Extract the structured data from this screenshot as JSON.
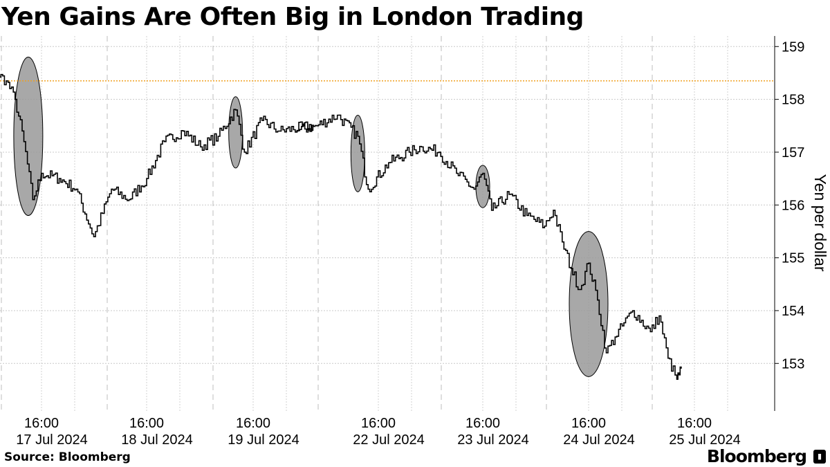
{
  "header": {
    "title": "Yen Gains Are Often Big in London Trading"
  },
  "footer": {
    "source": "Source: Bloomberg",
    "brand": "Bloomberg"
  },
  "chart_data": {
    "type": "line",
    "title": "Yen Gains Are Often Big in London Trading",
    "ylabel": "Yen per dollar",
    "xlabel": "",
    "ylim": [
      152.1,
      159.2
    ],
    "y_ticks": [
      153,
      154,
      155,
      156,
      157,
      158,
      159
    ],
    "x_tick_labels": [
      {
        "time": "16:00",
        "date": "17 Jul 2024"
      },
      {
        "time": "16:00",
        "date": "18 Jul 2024"
      },
      {
        "time": "16:00",
        "date": "19 Jul 2024"
      },
      {
        "time": "16:00",
        "date": "22 Jul 2024"
      },
      {
        "time": "16:00",
        "date": "23 Jul 2024"
      },
      {
        "time": "16:00",
        "date": "24 Jul 2024"
      },
      {
        "time": "16:00",
        "date": "25 Jul 2024"
      }
    ],
    "reference_line": {
      "value": 158.35,
      "color": "#f0a020",
      "style": "dotted"
    },
    "grid": true,
    "series": [
      {
        "color": "#000000",
        "segments": [
          [
            {
              "x": "17 Jul 2024 00:00",
              "y": 158.35
            },
            {
              "x": "17 Jul 2024 04:00",
              "y": 158.6
            },
            {
              "x": "17 Jul 2024 08:00",
              "y": 158.35
            },
            {
              "x": "17 Jul 2024 10:00",
              "y": 158.0
            },
            {
              "x": "17 Jul 2024 12:00",
              "y": 157.2
            },
            {
              "x": "17 Jul 2024 14:00",
              "y": 156.1
            },
            {
              "x": "17 Jul 2024 16:00",
              "y": 156.6
            },
            {
              "x": "17 Jul 2024 20:00",
              "y": 156.5
            },
            {
              "x": "18 Jul 2024 00:00",
              "y": 156.3
            },
            {
              "x": "18 Jul 2024 04:00",
              "y": 155.4
            },
            {
              "x": "18 Jul 2024 08:00",
              "y": 156.3
            },
            {
              "x": "18 Jul 2024 12:00",
              "y": 156.1
            },
            {
              "x": "18 Jul 2024 16:00",
              "y": 156.5
            },
            {
              "x": "18 Jul 2024 20:00",
              "y": 157.2
            },
            {
              "x": "19 Jul 2024 00:00",
              "y": 157.4
            },
            {
              "x": "19 Jul 2024 04:00",
              "y": 157.1
            },
            {
              "x": "19 Jul 2024 08:00",
              "y": 157.3
            },
            {
              "x": "19 Jul 2024 12:00",
              "y": 157.8
            },
            {
              "x": "19 Jul 2024 14:00",
              "y": 157.0
            },
            {
              "x": "19 Jul 2024 18:00",
              "y": 157.6
            },
            {
              "x": "19 Jul 2024 22:00",
              "y": 157.4
            },
            {
              "x": "20 Jul 2024 00:00",
              "y": 157.5
            }
          ],
          [
            {
              "x": "22 Jul 2024 00:00",
              "y": 157.4
            },
            {
              "x": "22 Jul 2024 04:00",
              "y": 157.5
            },
            {
              "x": "22 Jul 2024 08:00",
              "y": 157.7
            },
            {
              "x": "22 Jul 2024 12:00",
              "y": 157.3
            },
            {
              "x": "22 Jul 2024 14:00",
              "y": 156.3
            },
            {
              "x": "22 Jul 2024 18:00",
              "y": 156.8
            },
            {
              "x": "22 Jul 2024 22:00",
              "y": 157.0
            },
            {
              "x": "23 Jul 2024 02:00",
              "y": 157.1
            },
            {
              "x": "23 Jul 2024 06:00",
              "y": 157.0
            },
            {
              "x": "23 Jul 2024 10:00",
              "y": 156.6
            },
            {
              "x": "23 Jul 2024 14:00",
              "y": 156.3
            },
            {
              "x": "23 Jul 2024 16:00",
              "y": 156.6
            },
            {
              "x": "23 Jul 2024 18:00",
              "y": 155.9
            },
            {
              "x": "23 Jul 2024 22:00",
              "y": 156.2
            },
            {
              "x": "24 Jul 2024 02:00",
              "y": 155.8
            },
            {
              "x": "24 Jul 2024 06:00",
              "y": 155.6
            },
            {
              "x": "24 Jul 2024 08:00",
              "y": 155.9
            },
            {
              "x": "24 Jul 2024 10:00",
              "y": 155.3
            },
            {
              "x": "24 Jul 2024 12:00",
              "y": 154.8
            },
            {
              "x": "24 Jul 2024 14:00",
              "y": 154.4
            },
            {
              "x": "24 Jul 2024 16:00",
              "y": 154.9
            },
            {
              "x": "24 Jul 2024 18:00",
              "y": 154.2
            },
            {
              "x": "24 Jul 2024 20:00",
              "y": 153.2
            },
            {
              "x": "24 Jul 2024 22:00",
              "y": 153.5
            },
            {
              "x": "25 Jul 2024 02:00",
              "y": 154.0
            },
            {
              "x": "25 Jul 2024 06:00",
              "y": 153.6
            },
            {
              "x": "25 Jul 2024 08:00",
              "y": 153.9
            },
            {
              "x": "25 Jul 2024 10:00",
              "y": 153.1
            },
            {
              "x": "25 Jul 2024 12:00",
              "y": 152.7
            },
            {
              "x": "25 Jul 2024 13:00",
              "y": 152.9
            }
          ]
        ]
      }
    ],
    "highlights": [
      {
        "x": "17 Jul 2024 13:00",
        "y_range": [
          155.8,
          158.8
        ],
        "color": "#999999"
      },
      {
        "x": "19 Jul 2024 12:00",
        "y_range": [
          156.7,
          158.05
        ],
        "color": "#999999"
      },
      {
        "x": "22 Jul 2024 12:00",
        "y_range": [
          156.25,
          157.7
        ],
        "color": "#999999"
      },
      {
        "x": "23 Jul 2024 16:00",
        "y_range": [
          155.95,
          156.75
        ],
        "color": "#999999"
      },
      {
        "x": "24 Jul 2024 16:00",
        "y_range": [
          152.75,
          155.5
        ],
        "color": "#999999"
      }
    ]
  }
}
